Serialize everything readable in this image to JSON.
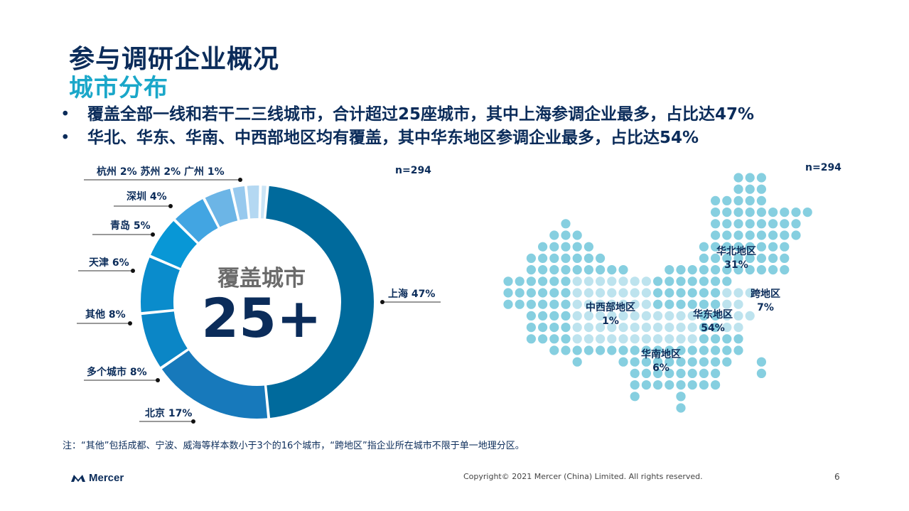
{
  "header": {
    "title": "参与调研企业概况",
    "subtitle": "城市分布"
  },
  "bullets": [
    "覆盖全部一线和若干二三线城市，合计超过25座城市，其中上海参调企业最多，占比达47%",
    "华北、华东、华南、中西部地区均有覆盖，其中华东地区参调企业最多，占比达54%"
  ],
  "bullet_marker": "•",
  "chart_data": [
    {
      "type": "pie",
      "center_label": "覆盖城市",
      "center_value": "25+",
      "sample_size": "n=294",
      "slices": [
        {
          "label": "上海 47%",
          "value": 47,
          "color": "#006a9c"
        },
        {
          "label": "北京 17%",
          "value": 17,
          "color": "#1779bb"
        },
        {
          "label": "多个城市 8%",
          "value": 8,
          "color": "#0b86c6"
        },
        {
          "label": "其他 8%",
          "value": 8,
          "color": "#0a8ccc"
        },
        {
          "label": "天津 6%",
          "value": 6,
          "color": "#0897d6"
        },
        {
          "label": "青岛 5%",
          "value": 5,
          "color": "#42a5e2"
        },
        {
          "label": "深圳 4%",
          "value": 4,
          "color": "#6cb5e6"
        },
        {
          "label": "杭州 2%",
          "value": 2,
          "color": "#97c9ee"
        },
        {
          "label": "苏州 2%",
          "value": 2,
          "color": "#b4d8f2"
        },
        {
          "label": "广州 1%",
          "value": 1,
          "color": "#cce5f6"
        }
      ]
    },
    {
      "type": "map",
      "sample_size": "n=294",
      "regions": [
        {
          "name": "华北地区",
          "pct": "31%"
        },
        {
          "name": "跨地区",
          "pct": "7%"
        },
        {
          "name": "中西部地区",
          "pct": "1%"
        },
        {
          "name": "华东地区",
          "pct": "54%"
        },
        {
          "name": "华南地区",
          "pct": "6%"
        }
      ],
      "dot_color": "#86cfe0",
      "dot_color_light": "#bde3ee"
    }
  ],
  "footer": {
    "note": "注：“其他”包括成都、宁波、威海等样本数小于3个的16个城市，“跨地区”指企业所在城市不限于单一地理分区。",
    "logo_text": "Mercer",
    "copyright": "Copyright© 2021 Mercer (China) Limited. All rights reserved.",
    "page_number": "6"
  }
}
